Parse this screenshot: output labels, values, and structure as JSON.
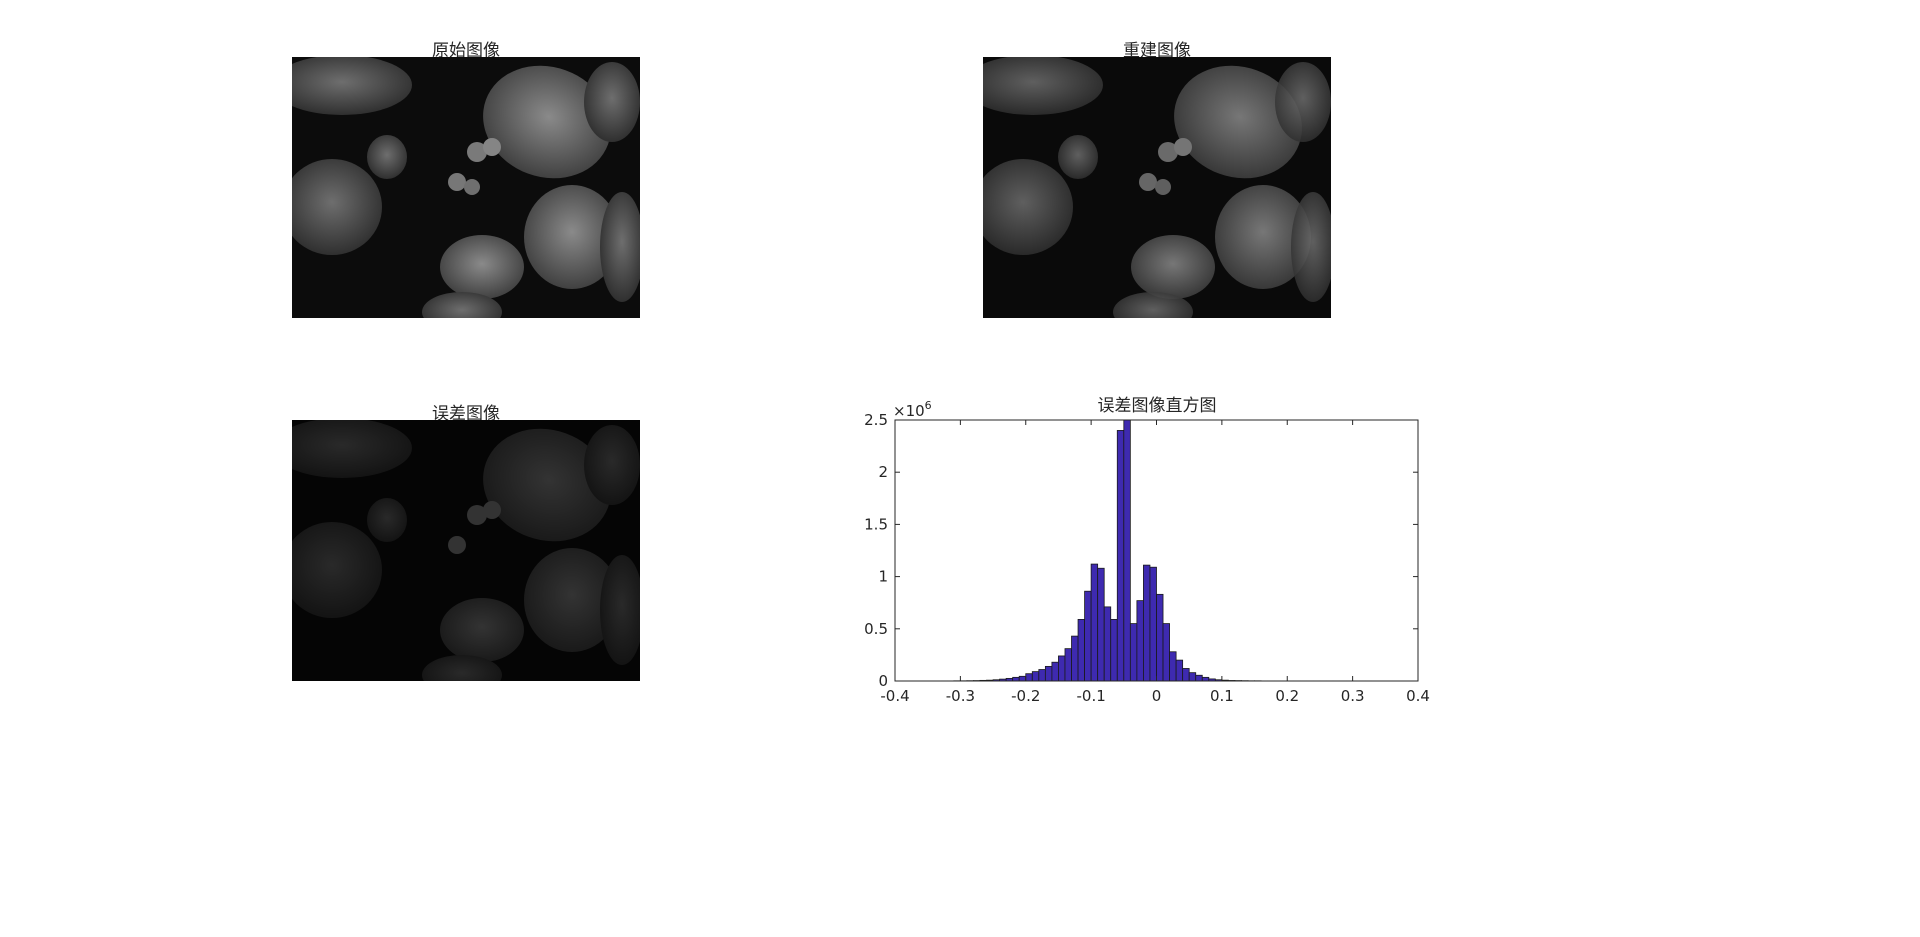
{
  "panels": {
    "original_title": "原始图像",
    "reconstructed_title": "重建图像",
    "error_title": "误差图像"
  },
  "chart_data": {
    "type": "bar",
    "title": "误差图像直方图",
    "xlabel": "",
    "ylabel": "",
    "y_exponent_label": "×10",
    "y_exponent_power": "6",
    "xlim": [
      -0.4,
      0.4
    ],
    "ylim": [
      0,
      2.5
    ],
    "xticks": [
      "-0.4",
      "-0.3",
      "-0.2",
      "-0.1",
      "0",
      "0.1",
      "0.2",
      "0.3",
      "0.4"
    ],
    "yticks": [
      "0",
      "0.5",
      "1",
      "1.5",
      "2",
      "2.5"
    ],
    "bar_color": "#3e2ab0",
    "bin_width": 0.01,
    "bin_centers": [
      -0.325,
      -0.315,
      -0.305,
      -0.295,
      -0.285,
      -0.275,
      -0.265,
      -0.255,
      -0.245,
      -0.235,
      -0.225,
      -0.215,
      -0.205,
      -0.195,
      -0.185,
      -0.175,
      -0.165,
      -0.155,
      -0.145,
      -0.135,
      -0.125,
      -0.115,
      -0.105,
      -0.095,
      -0.085,
      -0.075,
      -0.065,
      -0.055,
      -0.045,
      -0.035,
      -0.025,
      -0.015,
      -0.005,
      0.005,
      0.015,
      0.025,
      0.035,
      0.045,
      0.055,
      0.065,
      0.075,
      0.085,
      0.095,
      0.105,
      0.115,
      0.125,
      0.135,
      0.145,
      0.155,
      0.165,
      0.175,
      0.185,
      0.195,
      0.205,
      0.215,
      0.225,
      0.235,
      0.245,
      0.255,
      0.265,
      0.275,
      0.285,
      0.295,
      0.305,
      0.315,
      0.325
    ],
    "values": [
      0.001,
      0.001,
      0.002,
      0.002,
      0.003,
      0.004,
      0.006,
      0.008,
      0.012,
      0.018,
      0.025,
      0.035,
      0.045,
      0.07,
      0.09,
      0.11,
      0.14,
      0.18,
      0.24,
      0.31,
      0.43,
      0.59,
      0.86,
      1.12,
      1.08,
      0.71,
      0.59,
      2.4,
      2.5,
      0.55,
      0.77,
      1.11,
      1.09,
      0.83,
      0.55,
      0.28,
      0.2,
      0.12,
      0.08,
      0.055,
      0.035,
      0.02,
      0.012,
      0.008,
      0.005,
      0.004,
      0.003,
      0.002,
      0.002,
      0.001,
      0.001,
      0.001,
      0.001,
      0.001,
      0.001,
      0.001,
      0.001,
      0.001,
      0.001,
      0.001,
      0.001,
      0.001,
      0.001,
      0.001,
      0.001,
      0.001
    ]
  }
}
